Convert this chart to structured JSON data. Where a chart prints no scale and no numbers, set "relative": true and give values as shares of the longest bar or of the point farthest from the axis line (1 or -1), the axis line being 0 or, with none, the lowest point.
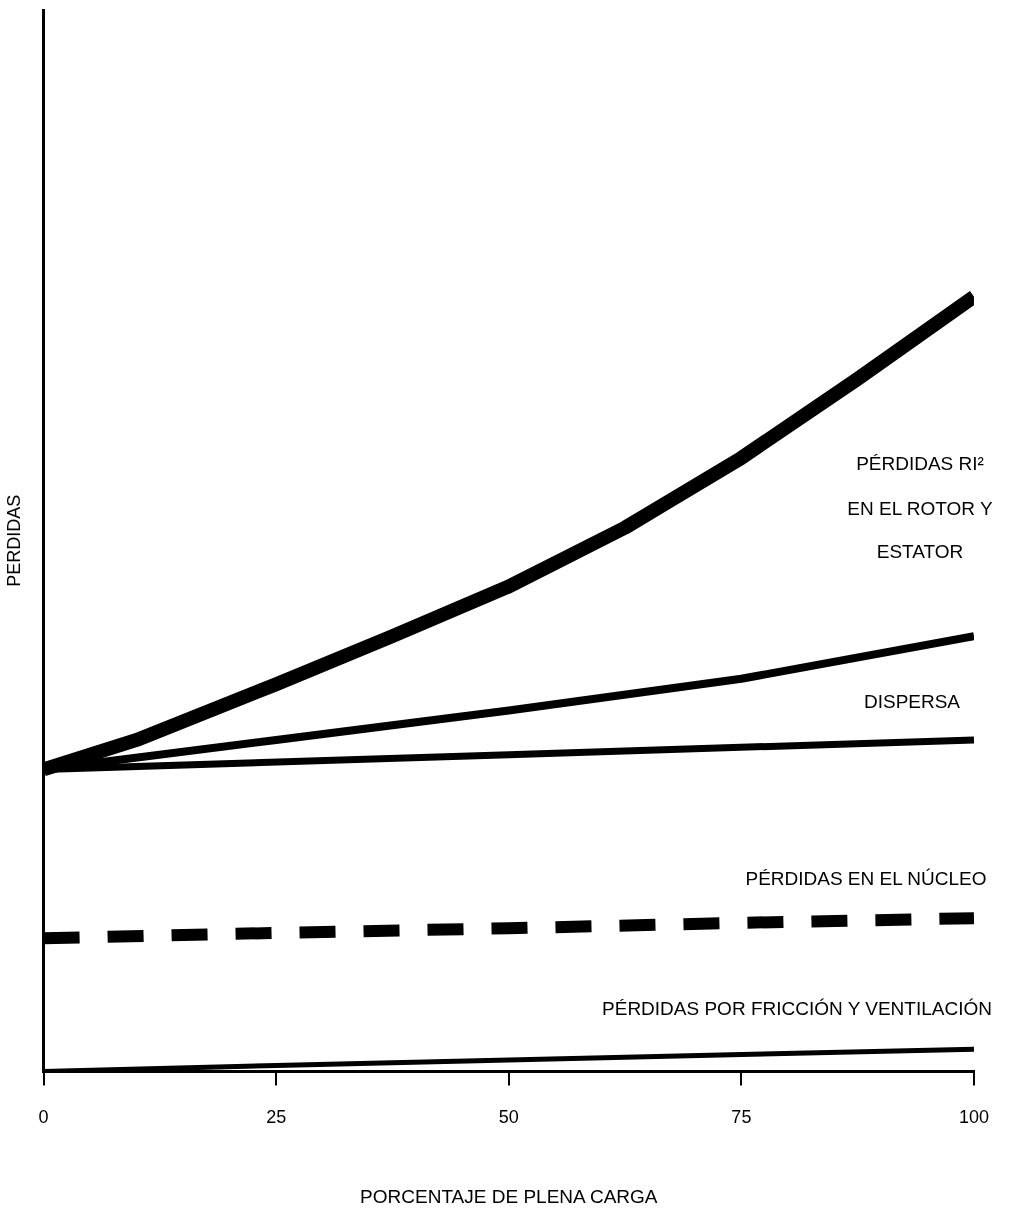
{
  "chart_data": {
    "type": "line",
    "relative": true,
    "xlabel": "PORCENTAJE DE PLENA CARGA",
    "ylabel": "PERDIDAS",
    "x": [
      0,
      25,
      50,
      75,
      100
    ],
    "xlim": [
      0,
      100
    ],
    "xticks": [
      0,
      25,
      50,
      75,
      100
    ],
    "grid": false,
    "legend": false,
    "marker": "none",
    "series": [
      {
        "color": "#000000",
        "x": [
          0,
          10,
          25,
          37.5,
          50,
          62.5,
          75,
          87.5,
          100
        ],
        "values": [
          0.39,
          0.428,
          0.5,
          0.562,
          0.626,
          0.702,
          0.792,
          0.894,
          1.0
        ]
      },
      {
        "color": "#000000",
        "values": [
          0.39,
          0.428,
          0.466,
          0.507,
          0.562
        ]
      },
      {
        "color": "#000000",
        "x": [
          0,
          50,
          100
        ],
        "values": [
          0.39,
          0.409,
          0.428
        ]
      },
      {
        "color": "#000000",
        "line_style": "dashed",
        "values": [
          0.172,
          0.179,
          0.185,
          0.192,
          0.198
        ]
      },
      {
        "color": "#000000",
        "values": [
          0,
          0.008,
          0.015,
          0.022,
          0.029
        ]
      }
    ],
    "annotations": [
      "PÉRDIDAS RI²",
      "EN EL ROTOR Y",
      "ESTATOR",
      "DISPERSA",
      "PÉRDIDAS EN EL NÚCLEO",
      "PÉRDIDAS POR FRICCIÓN Y VENTILACIÓN"
    ]
  }
}
